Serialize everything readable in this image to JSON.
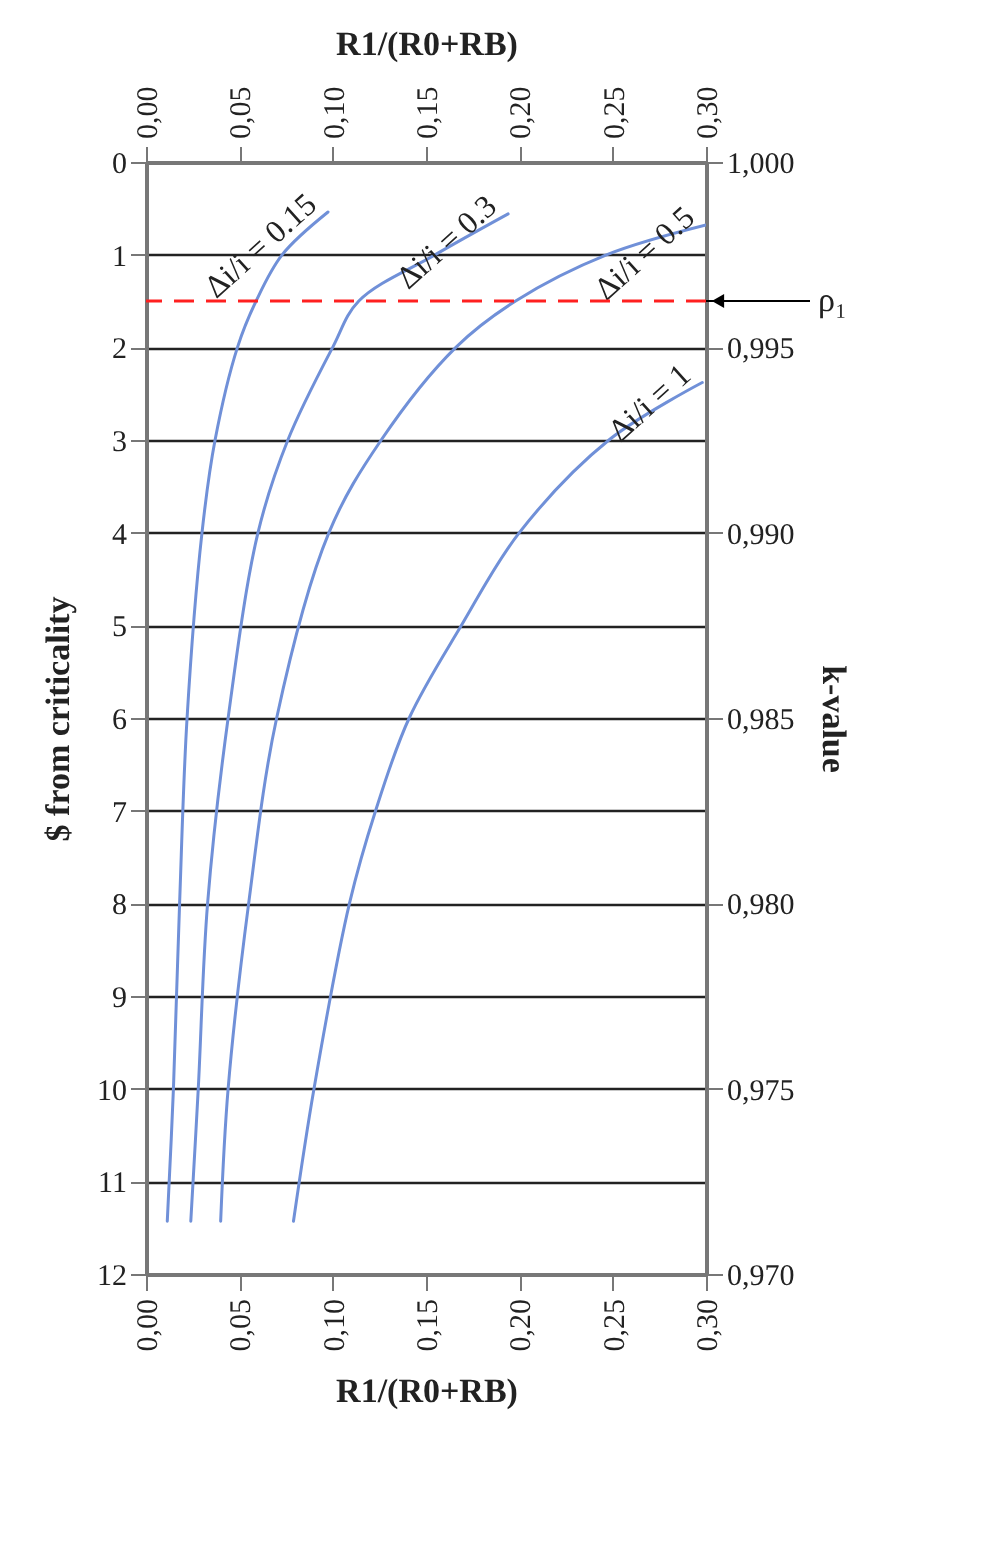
{
  "chart_data": {
    "type": "line",
    "xlabel": "R1/(R0+RB)",
    "x2label": "R1/(R0+RB)",
    "ylabel": "$ from criticality",
    "y2label": "k-value",
    "xlim": [
      0,
      0.3
    ],
    "xticks": [
      {
        "value": 0,
        "label": "0,00"
      },
      {
        "value": 0.05,
        "label": "0,05"
      },
      {
        "value": 0.1,
        "label": "0,10"
      },
      {
        "value": 0.15,
        "label": "0,15"
      },
      {
        "value": 0.2,
        "label": "0,20"
      },
      {
        "value": 0.25,
        "label": "0,25"
      },
      {
        "value": 0.3,
        "label": "0,30"
      }
    ],
    "x2lim": [
      0,
      0.3
    ],
    "x2ticks": [
      {
        "value": 0,
        "label": "0,00"
      },
      {
        "value": 0.05,
        "label": "0,05"
      },
      {
        "value": 0.1,
        "label": "0,10"
      },
      {
        "value": 0.15,
        "label": "0,15"
      },
      {
        "value": 0.2,
        "label": "0,20"
      },
      {
        "value": 0.25,
        "label": "0,25"
      },
      {
        "value": 0.3,
        "label": "0,30"
      }
    ],
    "ylim": [
      12,
      0
    ],
    "yticks": [
      0,
      1,
      2,
      3,
      4,
      5,
      6,
      7,
      8,
      9,
      10,
      11,
      12
    ],
    "y2lim": [
      0.97,
      1.0
    ],
    "y2ticks": [
      {
        "value": 0.97,
        "label": "0,970"
      },
      {
        "value": 0.975,
        "label": "0,975"
      },
      {
        "value": 0.98,
        "label": "0,980"
      },
      {
        "value": 0.985,
        "label": "0,985"
      },
      {
        "value": 0.99,
        "label": "0,990"
      },
      {
        "value": 0.995,
        "label": "0,995"
      },
      {
        "value": 1.0,
        "label": "1,000"
      }
    ],
    "grid": "y",
    "series": [
      {
        "name": "Δi/i = 0.15",
        "color": "#7090d8",
        "x": [
          0.0975,
          0.073,
          0.059,
          0.049,
          0.037,
          0.03,
          0.022,
          0.018,
          0.0147,
          0.0114
        ],
        "values": [
          0.54,
          1,
          1.5,
          2,
          3,
          4,
          6,
          8,
          10,
          11.43
        ]
      },
      {
        "name": "Δi/i = 0.3",
        "color": "#7090d8",
        "x": [
          0.194,
          0.155,
          0.114,
          0.1,
          0.076,
          0.06,
          0.044,
          0.033,
          0.028,
          0.024
        ],
        "values": [
          0.56,
          1,
          1.5,
          2,
          3,
          4,
          6,
          8,
          10,
          11.43
        ]
      },
      {
        "name": "Δi/i = 0.5",
        "color": "#7090d8",
        "x": [
          0.3,
          0.247,
          0.198,
          0.166,
          0.126,
          0.098,
          0.07,
          0.055,
          0.044,
          0.04
        ],
        "values": [
          0.68,
          1,
          1.5,
          2,
          3,
          4,
          6,
          8,
          10,
          11.43
        ]
      },
      {
        "name": "Δi/i = 1",
        "color": "#7090d8",
        "x": [
          0.298,
          0.248,
          0.2,
          0.169,
          0.141,
          0.123,
          0.109,
          0.09,
          0.079
        ],
        "values": [
          2.38,
          3,
          4,
          5,
          6,
          7,
          8,
          10,
          11.43
        ]
      }
    ],
    "ref_lines": [
      {
        "axis": "y",
        "value": 1.5,
        "label": "ρ₁",
        "color": "#ff2020",
        "line_style": "dashed"
      }
    ]
  }
}
